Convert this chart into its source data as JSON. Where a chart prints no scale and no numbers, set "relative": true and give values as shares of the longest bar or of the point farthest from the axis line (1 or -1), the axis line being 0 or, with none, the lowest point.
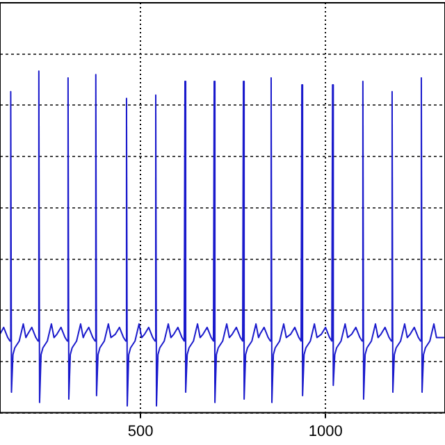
{
  "chart_data": {
    "type": "line",
    "relative": true,
    "color": "#1a1acc",
    "xlim": [
      120,
      1323
    ],
    "xticks": [
      500,
      1000
    ],
    "grid": true,
    "tick_labels": "x",
    "marker": "none",
    "legend": false,
    "x": [
      120,
      130,
      141,
      147,
      149,
      151,
      155,
      160,
      172,
      183,
      190,
      195,
      206,
      217,
      223,
      225,
      227,
      231,
      236,
      248,
      259,
      266,
      274,
      285,
      296,
      302,
      304,
      306,
      310,
      315,
      327,
      338,
      345,
      349,
      360,
      371,
      377,
      379,
      381,
      385,
      390,
      402,
      413,
      420,
      432,
      443,
      454,
      460,
      462,
      464,
      468,
      473,
      485,
      496,
      503,
      511,
      522,
      533,
      539,
      541,
      543,
      547,
      552,
      564,
      575,
      582,
      590,
      601,
      612,
      618,
      620,
      622,
      626,
      631,
      643,
      654,
      661,
      669,
      680,
      691,
      697,
      699,
      701,
      705,
      710,
      722,
      733,
      740,
      748,
      759,
      770,
      776,
      778,
      780,
      784,
      789,
      801,
      812,
      819,
      823,
      834,
      845,
      851,
      853,
      855,
      859,
      864,
      876,
      887,
      894,
      906,
      917,
      928,
      934,
      936,
      938,
      942,
      947,
      959,
      970,
      977,
      989,
      1000,
      1011,
      1017,
      1019,
      1021,
      1025,
      1030,
      1042,
      1053,
      1060,
      1071,
      1082,
      1093,
      1099,
      1101,
      1103,
      1107,
      1112,
      1124,
      1135,
      1142,
      1150,
      1161,
      1172,
      1178,
      1180,
      1182,
      1186,
      1191,
      1203,
      1214,
      1221,
      1229,
      1240,
      1251,
      1257,
      1259,
      1261,
      1265,
      1270,
      1282,
      1293,
      1300,
      1323
    ],
    "values": [
      0.23,
      0.25,
      0.22,
      0.21,
      0.94,
      0.06,
      0.17,
      0.19,
      0.21,
      0.26,
      0.22,
      0.23,
      0.25,
      0.22,
      0.21,
      1,
      0.03,
      0.17,
      0.19,
      0.21,
      0.26,
      0.22,
      0.23,
      0.25,
      0.22,
      0.21,
      0.98,
      0.04,
      0.17,
      0.19,
      0.21,
      0.26,
      0.22,
      0.23,
      0.25,
      0.22,
      0.21,
      0.99,
      0.05,
      0.17,
      0.19,
      0.21,
      0.26,
      0.22,
      0.23,
      0.25,
      0.22,
      0.21,
      0.92,
      0.02,
      0.17,
      0.19,
      0.21,
      0.26,
      0.22,
      0.23,
      0.25,
      0.22,
      0.21,
      0.93,
      0.02,
      0.17,
      0.19,
      0.21,
      0.26,
      0.22,
      0.23,
      0.25,
      0.22,
      0.21,
      0.97,
      0.06,
      0.17,
      0.19,
      0.21,
      0.26,
      0.22,
      0.23,
      0.25,
      0.22,
      0.21,
      0.97,
      0.03,
      0.17,
      0.19,
      0.21,
      0.26,
      0.22,
      0.23,
      0.25,
      0.22,
      0.21,
      0.97,
      0.04,
      0.17,
      0.19,
      0.21,
      0.26,
      0.22,
      0.23,
      0.25,
      0.22,
      0.21,
      0.98,
      0.03,
      0.17,
      0.19,
      0.21,
      0.26,
      0.22,
      0.23,
      0.25,
      0.22,
      0.21,
      0.96,
      0.05,
      0.17,
      0.19,
      0.21,
      0.26,
      0.22,
      0.23,
      0.25,
      0.22,
      0.21,
      0.96,
      0.08,
      0.17,
      0.19,
      0.21,
      0.26,
      0.22,
      0.23,
      0.25,
      0.22,
      0.21,
      0.97,
      0.04,
      0.17,
      0.19,
      0.21,
      0.26,
      0.22,
      0.23,
      0.25,
      0.22,
      0.21,
      0.94,
      0.06,
      0.17,
      0.19,
      0.21,
      0.26,
      0.22,
      0.23,
      0.25,
      0.22,
      0.21,
      0.98,
      0.06,
      0.17,
      0.19,
      0.21,
      0.26,
      0.22,
      0.22
    ]
  }
}
